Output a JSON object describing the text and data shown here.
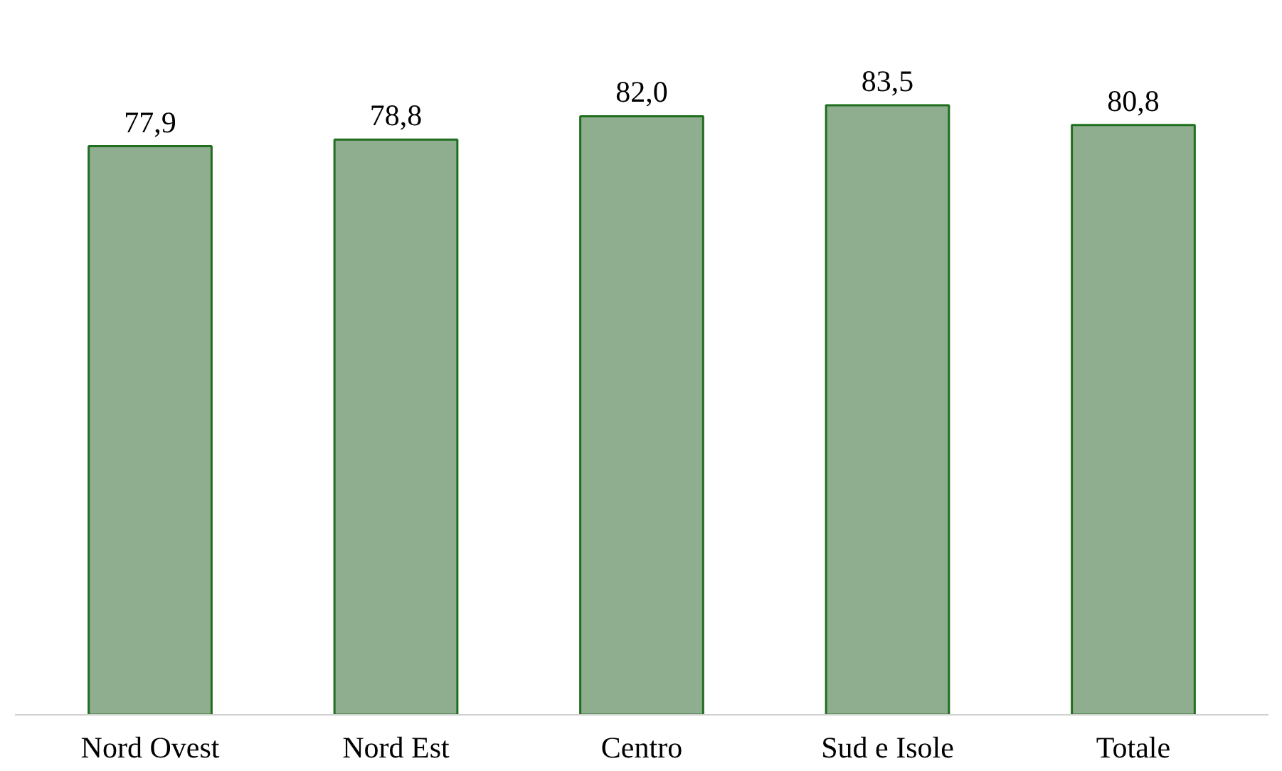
{
  "chart_data": {
    "type": "bar",
    "categories": [
      "Nord Ovest",
      "Nord Est",
      "Centro",
      "Sud e Isole",
      "Totale"
    ],
    "values": [
      77.9,
      78.8,
      82.0,
      83.5,
      80.8
    ],
    "value_labels": [
      "77,9",
      "78,8",
      "82,0",
      "83,5",
      "80,8"
    ],
    "color": "#8fad8f"
  }
}
